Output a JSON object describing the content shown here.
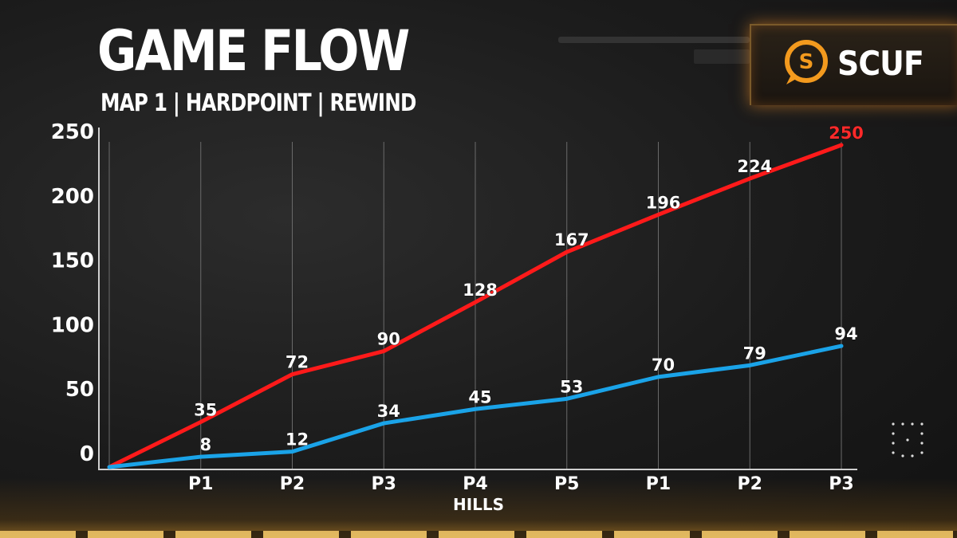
{
  "header": {
    "title": "GAME FLOW",
    "subtitle": "MAP 1 | HARDPOINT | REWIND"
  },
  "brand": {
    "name": "SCUF",
    "logo_icon": "scuf-s-logo-icon",
    "accent": "#f39a1e"
  },
  "chart_data": {
    "type": "line",
    "categories": [
      "",
      "P1",
      "P2",
      "P3",
      "P4",
      "P5",
      "P1",
      "P2",
      "P3"
    ],
    "xlabel": "HILLS",
    "ylabel": "",
    "ylim": [
      0,
      250
    ],
    "yticks": [
      0,
      50,
      100,
      150,
      200,
      250
    ],
    "grid": "vertical",
    "series": [
      {
        "color": "#ff1a1a",
        "values": [
          0,
          35,
          72,
          90,
          128,
          167,
          196,
          224,
          250
        ],
        "final_label_color": "#ff2a2a"
      },
      {
        "color": "#1aa3e8",
        "values": [
          0,
          8,
          12,
          34,
          45,
          53,
          70,
          79,
          94
        ],
        "final_label_color": "#ffffff"
      }
    ]
  }
}
